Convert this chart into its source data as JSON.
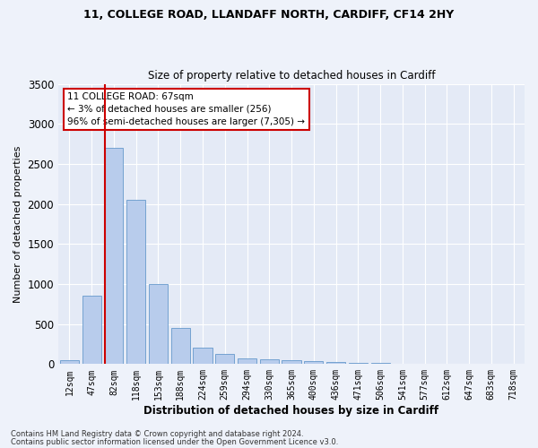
{
  "title1": "11, COLLEGE ROAD, LLANDAFF NORTH, CARDIFF, CF14 2HY",
  "title2": "Size of property relative to detached houses in Cardiff",
  "xlabel": "Distribution of detached houses by size in Cardiff",
  "ylabel": "Number of detached properties",
  "footer1": "Contains HM Land Registry data © Crown copyright and database right 2024.",
  "footer2": "Contains public sector information licensed under the Open Government Licence v3.0.",
  "annotation_title": "11 COLLEGE ROAD: 67sqm",
  "annotation_line2": "← 3% of detached houses are smaller (256)",
  "annotation_line3": "96% of semi-detached houses are larger (7,305) →",
  "bar_color": "#b8ccec",
  "bar_edge_color": "#6699cc",
  "vline_color": "#cc0000",
  "categories": [
    "12sqm",
    "47sqm",
    "82sqm",
    "118sqm",
    "153sqm",
    "188sqm",
    "224sqm",
    "259sqm",
    "294sqm",
    "330sqm",
    "365sqm",
    "400sqm",
    "436sqm",
    "471sqm",
    "506sqm",
    "541sqm",
    "577sqm",
    "612sqm",
    "647sqm",
    "683sqm",
    "718sqm"
  ],
  "values": [
    50,
    850,
    2700,
    2050,
    1000,
    450,
    200,
    130,
    75,
    60,
    50,
    35,
    30,
    20,
    10,
    5,
    4,
    3,
    2,
    1,
    1
  ],
  "ylim": [
    0,
    3500
  ],
  "yticks": [
    0,
    500,
    1000,
    1500,
    2000,
    2500,
    3000,
    3500
  ],
  "bg_color": "#eef2fa",
  "plot_bg_color": "#e4eaf6"
}
